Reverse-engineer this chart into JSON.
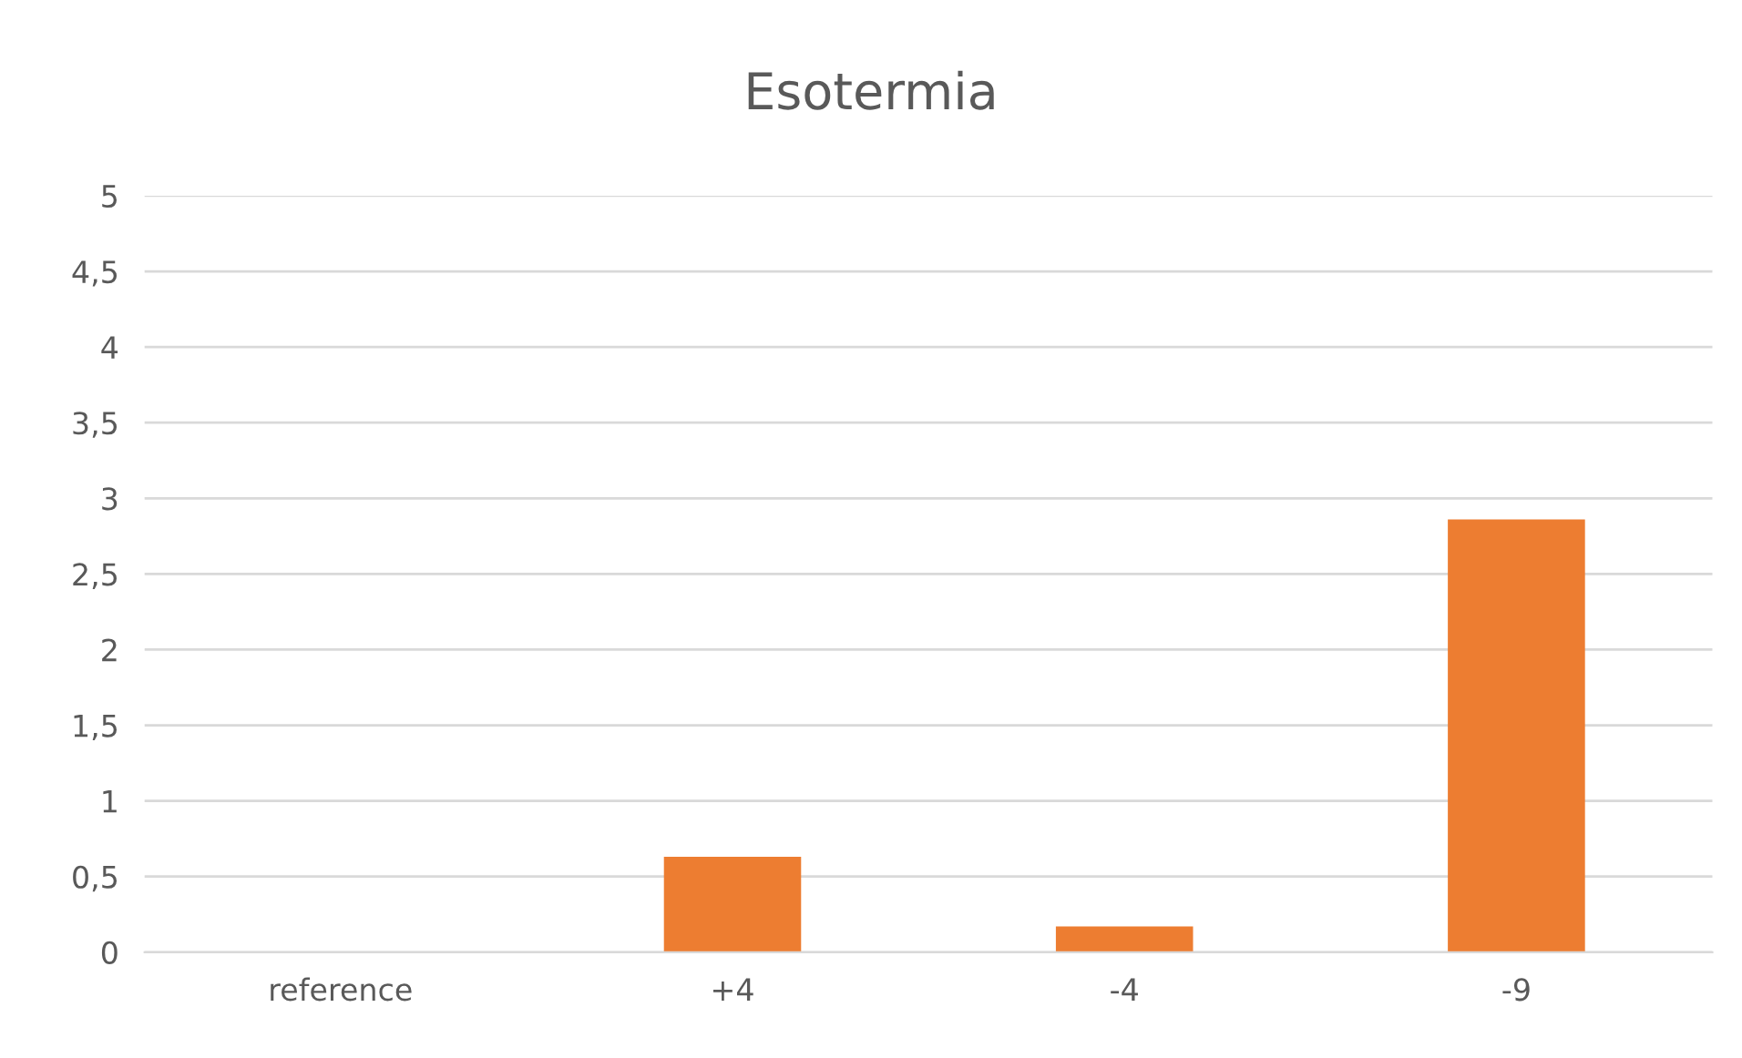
{
  "chart_data": {
    "type": "bar",
    "title": "Esotermia",
    "categories": [
      "reference",
      "+4",
      "-4",
      "-9"
    ],
    "values": [
      0,
      0.63,
      0.17,
      2.86
    ],
    "color": "#ed7d31",
    "ylim": [
      0,
      5
    ],
    "yticks": [
      0,
      {
        "value": 0.5,
        "label": "0,5"
      },
      1,
      {
        "value": 1.5,
        "label": "1,5"
      },
      2,
      {
        "value": 2.5,
        "label": "2,5"
      },
      3,
      {
        "value": 3.5,
        "label": "3,5"
      },
      4,
      {
        "value": 4.5,
        "label": "4,5"
      },
      5
    ],
    "grid": "y",
    "legend": false
  }
}
